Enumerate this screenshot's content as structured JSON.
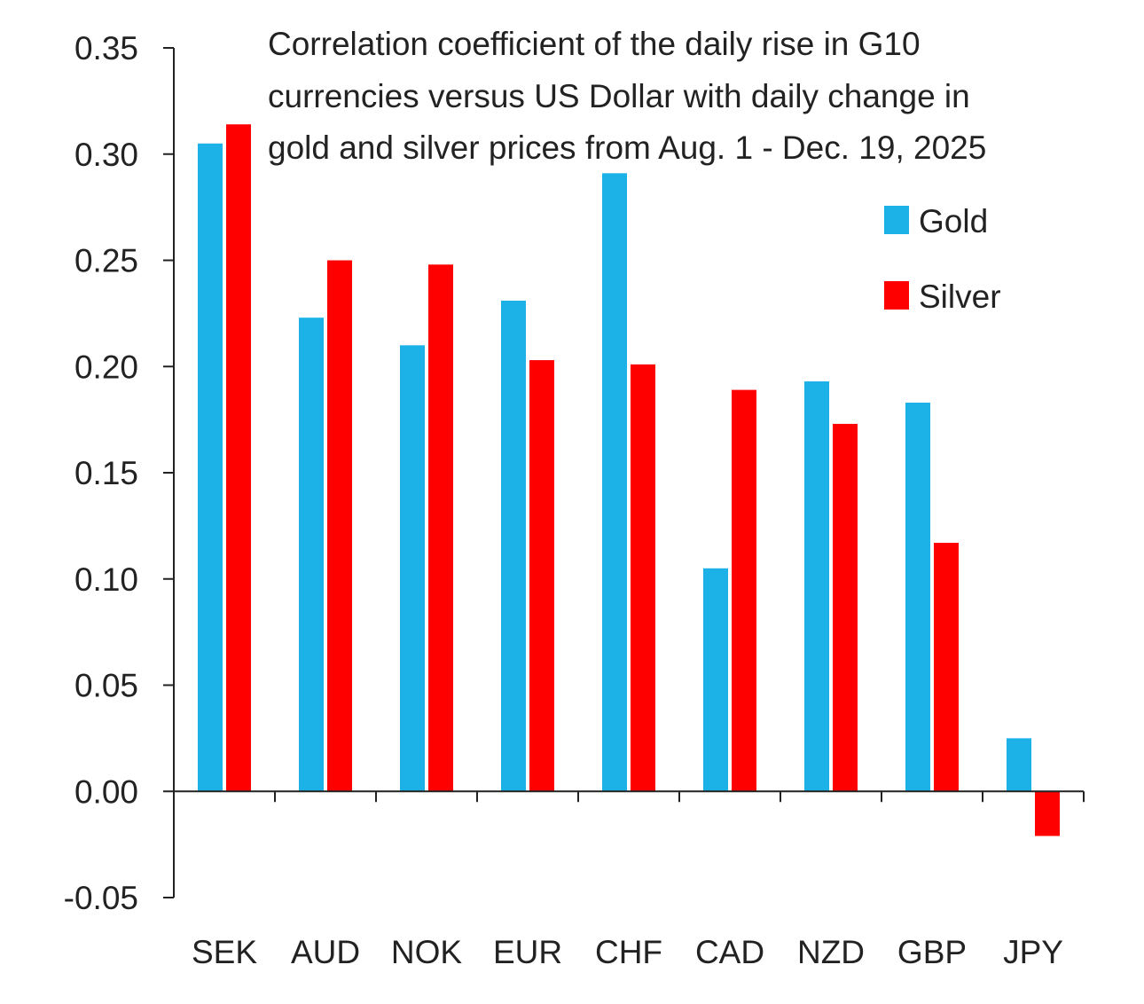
{
  "chart_data": {
    "type": "bar",
    "title_lines": [
      "Correlation coefficient of the daily rise in G10",
      "currencies versus US Dollar with daily change in",
      "gold and silver prices from Aug. 1 - Dec. 19, 2025"
    ],
    "categories": [
      "SEK",
      "AUD",
      "NOK",
      "EUR",
      "CHF",
      "CAD",
      "NZD",
      "GBP",
      "JPY"
    ],
    "series": [
      {
        "name": "Gold",
        "color": "#1CB2E8",
        "values": [
          0.305,
          0.223,
          0.21,
          0.231,
          0.291,
          0.105,
          0.193,
          0.183,
          0.025
        ]
      },
      {
        "name": "Silver",
        "color": "#FF0000",
        "values": [
          0.314,
          0.25,
          0.248,
          0.203,
          0.201,
          0.189,
          0.173,
          0.117,
          -0.021
        ]
      }
    ],
    "y_ticks": [
      "0.35",
      "0.30",
      "0.25",
      "0.20",
      "0.15",
      "0.10",
      "0.05",
      "0.00",
      "-0.05"
    ],
    "ylim": [
      -0.05,
      0.35
    ],
    "xlabel": "",
    "ylabel": "",
    "grid": false,
    "legend_position": "top-right"
  }
}
